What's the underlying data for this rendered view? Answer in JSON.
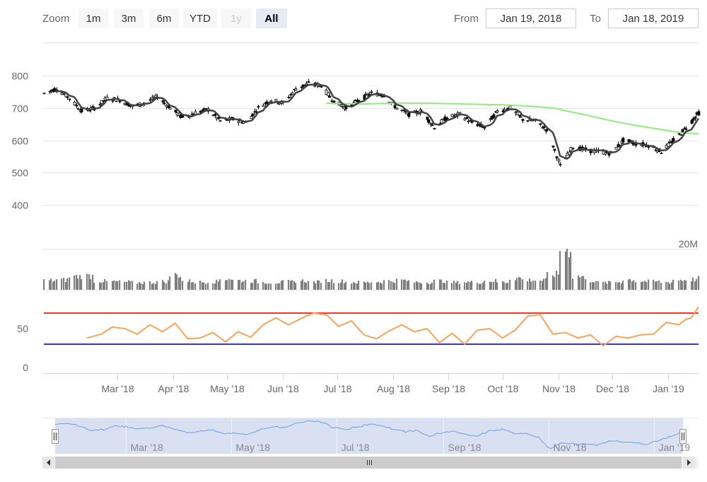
{
  "toolbar": {
    "zoom_label": "Zoom",
    "buttons": [
      {
        "label": "1m",
        "state": "normal"
      },
      {
        "label": "3m",
        "state": "normal"
      },
      {
        "label": "6m",
        "state": "normal"
      },
      {
        "label": "YTD",
        "state": "normal"
      },
      {
        "label": "1y",
        "state": "disabled"
      },
      {
        "label": "All",
        "state": "selected"
      }
    ],
    "from_label": "From",
    "from_value": "Jan 19, 2018",
    "to_label": "To",
    "to_value": "Jan 18, 2019"
  },
  "colors": {
    "candle": "#000000",
    "sma_short": "#434348",
    "sma_long": "#90ed7d",
    "volume": "#7f7f7f",
    "rsi": "#f7a35c",
    "rsi_overbought": "#ff3333",
    "rsi_oversold": "#3333dd",
    "navigator_series": "#6f9fe3",
    "navigator_mask": "#d2dbee"
  },
  "chart_data": {
    "type": "stock",
    "x_start": "2018-01-19",
    "x_end": "2019-01-18",
    "price_axis": {
      "ticks": [
        400,
        500,
        600,
        700,
        800
      ],
      "ylim": [
        400,
        800
      ]
    },
    "volume_axis": {
      "label": "20M",
      "max": 20000000
    },
    "rsi_axis": {
      "ticks": [
        0,
        50
      ],
      "overbought": 70,
      "oversold": 30
    },
    "x_tick_labels": [
      "Mar '18",
      "Apr '18",
      "May '18",
      "Jun '18",
      "Jul '18",
      "Aug '18",
      "Sep '18",
      "Oct '18",
      "Nov '18",
      "Dec '18",
      "Jan '19"
    ],
    "navigator_labels": [
      "Mar '18",
      "May '18",
      "Jul '18",
      "Sep '18",
      "Nov '18",
      "Jan '19"
    ],
    "close": [
      [
        "2018-01-19",
        745
      ],
      [
        "2018-01-26",
        760
      ],
      [
        "2018-02-02",
        730
      ],
      [
        "2018-02-09",
        690
      ],
      [
        "2018-02-16",
        700
      ],
      [
        "2018-02-23",
        730
      ],
      [
        "2018-03-02",
        725
      ],
      [
        "2018-03-09",
        705
      ],
      [
        "2018-03-16",
        715
      ],
      [
        "2018-03-23",
        735
      ],
      [
        "2018-03-30",
        700
      ],
      [
        "2018-04-06",
        670
      ],
      [
        "2018-04-13",
        685
      ],
      [
        "2018-04-20",
        695
      ],
      [
        "2018-04-27",
        660
      ],
      [
        "2018-05-04",
        665
      ],
      [
        "2018-05-11",
        655
      ],
      [
        "2018-05-18",
        700
      ],
      [
        "2018-05-25",
        725
      ],
      [
        "2018-06-01",
        715
      ],
      [
        "2018-06-08",
        760
      ],
      [
        "2018-06-15",
        775
      ],
      [
        "2018-06-22",
        770
      ],
      [
        "2018-06-29",
        720
      ],
      [
        "2018-07-06",
        700
      ],
      [
        "2018-07-13",
        725
      ],
      [
        "2018-07-20",
        745
      ],
      [
        "2018-07-27",
        740
      ],
      [
        "2018-08-03",
        700
      ],
      [
        "2018-08-10",
        680
      ],
      [
        "2018-08-17",
        690
      ],
      [
        "2018-08-24",
        640
      ],
      [
        "2018-08-31",
        670
      ],
      [
        "2018-09-07",
        680
      ],
      [
        "2018-09-14",
        655
      ],
      [
        "2018-09-21",
        640
      ],
      [
        "2018-09-28",
        690
      ],
      [
        "2018-10-05",
        700
      ],
      [
        "2018-10-12",
        665
      ],
      [
        "2018-10-19",
        660
      ],
      [
        "2018-10-26",
        630
      ],
      [
        "2018-11-02",
        520
      ],
      [
        "2018-11-09",
        580
      ],
      [
        "2018-11-16",
        570
      ],
      [
        "2018-11-23",
        565
      ],
      [
        "2018-11-30",
        560
      ],
      [
        "2018-12-07",
        600
      ],
      [
        "2018-12-14",
        590
      ],
      [
        "2018-12-21",
        585
      ],
      [
        "2018-12-28",
        565
      ],
      [
        "2019-01-04",
        600
      ],
      [
        "2019-01-11",
        640
      ],
      [
        "2019-01-18",
        685
      ]
    ],
    "sma_long": [
      [
        "2018-06-25",
        715
      ],
      [
        "2018-07-15",
        712
      ],
      [
        "2018-08-01",
        715
      ],
      [
        "2018-08-20",
        715
      ],
      [
        "2018-09-10",
        712
      ],
      [
        "2018-10-01",
        710
      ],
      [
        "2018-10-15",
        706
      ],
      [
        "2018-10-29",
        700
      ],
      [
        "2018-11-15",
        680
      ],
      [
        "2018-12-01",
        660
      ],
      [
        "2018-12-15",
        645
      ],
      [
        "2019-01-01",
        630
      ],
      [
        "2019-01-10",
        622
      ],
      [
        "2019-01-18",
        620
      ]
    ],
    "volume": [
      [
        "2018-01-19",
        4500000
      ],
      [
        "2018-01-26",
        4800000
      ],
      [
        "2018-02-02",
        6500000
      ],
      [
        "2018-02-09",
        6800000
      ],
      [
        "2018-02-16",
        4200000
      ],
      [
        "2018-02-23",
        4000000
      ],
      [
        "2018-03-02",
        3800000
      ],
      [
        "2018-03-09",
        3500000
      ],
      [
        "2018-03-16",
        3600000
      ],
      [
        "2018-03-23",
        4000000
      ],
      [
        "2018-03-30",
        7200000
      ],
      [
        "2018-04-06",
        4200000
      ],
      [
        "2018-04-13",
        3800000
      ],
      [
        "2018-04-20",
        4000000
      ],
      [
        "2018-04-27",
        5500000
      ],
      [
        "2018-05-04",
        4500000
      ],
      [
        "2018-05-11",
        4300000
      ],
      [
        "2018-05-18",
        3700000
      ],
      [
        "2018-05-25",
        3600000
      ],
      [
        "2018-06-01",
        3900000
      ],
      [
        "2018-06-08",
        4400000
      ],
      [
        "2018-06-15",
        3800000
      ],
      [
        "2018-06-22",
        4500000
      ],
      [
        "2018-06-29",
        4200000
      ],
      [
        "2018-07-06",
        3700000
      ],
      [
        "2018-07-13",
        3600000
      ],
      [
        "2018-07-20",
        3900000
      ],
      [
        "2018-07-27",
        4300000
      ],
      [
        "2018-08-03",
        4600000
      ],
      [
        "2018-08-10",
        3800000
      ],
      [
        "2018-08-17",
        3700000
      ],
      [
        "2018-08-24",
        4300000
      ],
      [
        "2018-08-31",
        3600000
      ],
      [
        "2018-09-07",
        3800000
      ],
      [
        "2018-09-14",
        3700000
      ],
      [
        "2018-09-21",
        4400000
      ],
      [
        "2018-09-28",
        3800000
      ],
      [
        "2018-10-05",
        5800000
      ],
      [
        "2018-10-12",
        4800000
      ],
      [
        "2018-10-19",
        4600000
      ],
      [
        "2018-10-26",
        7500000
      ],
      [
        "2018-11-02",
        20000000
      ],
      [
        "2018-11-09",
        6500000
      ],
      [
        "2018-11-16",
        4500000
      ],
      [
        "2018-11-23",
        3500000
      ],
      [
        "2018-11-30",
        3800000
      ],
      [
        "2018-12-07",
        5000000
      ],
      [
        "2018-12-14",
        4200000
      ],
      [
        "2018-12-21",
        4000000
      ],
      [
        "2018-12-28",
        3700000
      ],
      [
        "2019-01-04",
        4800000
      ],
      [
        "2019-01-11",
        5000000
      ],
      [
        "2019-01-18",
        5500000
      ]
    ],
    "rsi": [
      [
        "2018-02-12",
        38
      ],
      [
        "2018-02-20",
        43
      ],
      [
        "2018-02-26",
        52
      ],
      [
        "2018-03-05",
        50
      ],
      [
        "2018-03-12",
        43
      ],
      [
        "2018-03-19",
        55
      ],
      [
        "2018-03-26",
        46
      ],
      [
        "2018-04-02",
        57
      ],
      [
        "2018-04-09",
        37
      ],
      [
        "2018-04-16",
        38
      ],
      [
        "2018-04-23",
        45
      ],
      [
        "2018-04-30",
        33
      ],
      [
        "2018-05-07",
        46
      ],
      [
        "2018-05-14",
        39
      ],
      [
        "2018-05-21",
        55
      ],
      [
        "2018-05-28",
        64
      ],
      [
        "2018-06-04",
        55
      ],
      [
        "2018-06-11",
        63
      ],
      [
        "2018-06-18",
        70
      ],
      [
        "2018-06-25",
        68
      ],
      [
        "2018-07-02",
        53
      ],
      [
        "2018-07-09",
        60
      ],
      [
        "2018-07-16",
        42
      ],
      [
        "2018-07-23",
        37
      ],
      [
        "2018-07-30",
        47
      ],
      [
        "2018-08-06",
        55
      ],
      [
        "2018-08-13",
        46
      ],
      [
        "2018-08-20",
        50
      ],
      [
        "2018-08-27",
        32
      ],
      [
        "2018-09-03",
        44
      ],
      [
        "2018-09-10",
        30
      ],
      [
        "2018-09-17",
        48
      ],
      [
        "2018-09-24",
        50
      ],
      [
        "2018-10-01",
        38
      ],
      [
        "2018-10-08",
        48
      ],
      [
        "2018-10-15",
        66
      ],
      [
        "2018-10-22",
        68
      ],
      [
        "2018-10-29",
        43
      ],
      [
        "2018-11-05",
        45
      ],
      [
        "2018-11-12",
        38
      ],
      [
        "2018-11-19",
        42
      ],
      [
        "2018-11-26",
        28
      ],
      [
        "2018-12-03",
        40
      ],
      [
        "2018-12-10",
        38
      ],
      [
        "2018-12-17",
        42
      ],
      [
        "2018-12-24",
        43
      ],
      [
        "2018-12-31",
        58
      ],
      [
        "2019-01-07",
        55
      ],
      [
        "2019-01-11",
        62
      ],
      [
        "2019-01-14",
        64
      ],
      [
        "2019-01-18",
        78
      ]
    ]
  }
}
